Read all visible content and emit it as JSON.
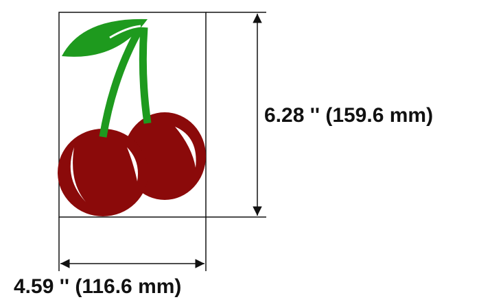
{
  "dimensions": {
    "height_label": "6.28 '' (159.6 mm)",
    "width_label": "4.59 '' (116.6 mm)"
  }
}
